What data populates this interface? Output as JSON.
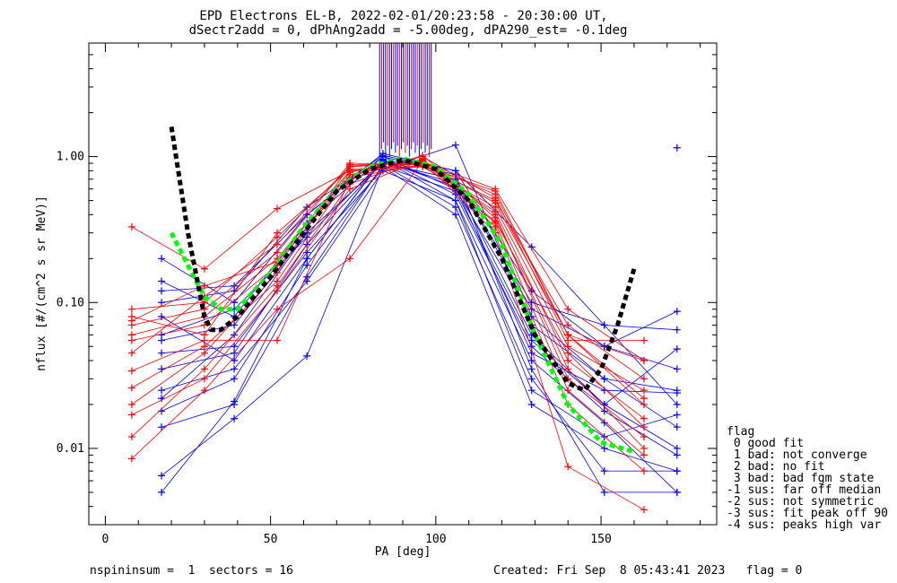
{
  "chart_data": {
    "type": "line",
    "title": "EPD Electrons EL-B, 2022-02-01/20:23:58 - 20:30:00 UT,",
    "subtitle": "dSectr2add = 0, dPhAng2add = -5.00deg, dPA290_est=  -0.1deg",
    "xlabel": "PA [deg]",
    "ylabel": "nflux [#/(cm^2 s sr MeV)]",
    "xlim": [
      -5,
      185
    ],
    "ylim": [
      0.003,
      6.0
    ],
    "yscale": "log",
    "xticks": [
      0,
      50,
      100,
      150
    ],
    "xtick_labels": [
      "0",
      "50",
      "100",
      "150"
    ],
    "yticks": [
      0.01,
      0.1,
      1.0
    ],
    "ytick_labels": [
      "0.01",
      "0.10",
      "1.00"
    ],
    "grid": false,
    "colors": {
      "red": "#ff0000",
      "blue": "#0000ff",
      "black": "#000000",
      "green": "#00ff00"
    },
    "sector_pa_red": [
      8,
      30,
      52,
      74,
      96,
      118,
      140,
      163
    ],
    "sector_pa_blue": [
      17,
      39,
      61,
      84,
      106,
      129,
      151,
      173
    ],
    "red_series": [
      {
        "name": "",
        "values": [
          0.06,
          0.08,
          0.2,
          0.8,
          0.9,
          0.55,
          0.06,
          0.02
        ]
      },
      {
        "name": "",
        "values": [
          0.026,
          0.05,
          0.14,
          0.75,
          0.95,
          0.4,
          0.03,
          0.012
        ]
      },
      {
        "name": "",
        "values": [
          0.09,
          0.1,
          0.28,
          0.85,
          0.92,
          0.6,
          0.09,
          0.04
        ]
      },
      {
        "name": "",
        "values": [
          0.33,
          0.17,
          0.44,
          0.8,
          0.85,
          0.45,
          0.05,
          0.025
        ]
      },
      {
        "name": "",
        "values": [
          0.012,
          0.035,
          0.13,
          0.65,
          0.97,
          0.35,
          0.025,
          0.009
        ]
      },
      {
        "name": "",
        "values": [
          0.07,
          0.09,
          0.22,
          0.9,
          0.88,
          0.5,
          0.07,
          0.03
        ]
      },
      {
        "name": "",
        "values": [
          0.0085,
          0.025,
          0.09,
          0.2,
          0.93,
          0.3,
          0.0075,
          0.0038
        ]
      },
      {
        "name": "",
        "values": [
          0.055,
          0.07,
          0.18,
          0.78,
          1.0,
          0.52,
          0.055,
          0.055
        ]
      },
      {
        "name": "",
        "values": [
          0.02,
          0.045,
          0.16,
          0.88,
          0.9,
          0.42,
          0.04,
          0.016
        ]
      },
      {
        "name": "",
        "values": [
          0.08,
          0.06,
          0.3,
          0.82,
          0.86,
          0.58,
          0.06,
          0.022
        ]
      },
      {
        "name": "",
        "values": [
          0.034,
          0.055,
          0.055,
          0.7,
          1.02,
          0.38,
          0.035,
          0.01
        ]
      },
      {
        "name": "",
        "values": [
          0.017,
          0.03,
          0.12,
          0.6,
          0.95,
          0.33,
          0.02,
          0.007
        ]
      },
      {
        "name": "",
        "values": [
          0.045,
          0.11,
          0.25,
          0.86,
          0.91,
          0.48,
          0.06,
          0.04
        ]
      },
      {
        "name": "",
        "values": [
          0.075,
          0.13,
          0.19,
          0.72,
          0.88,
          0.36,
          0.045,
          0.014
        ]
      }
    ],
    "blue_series": [
      {
        "name": "",
        "values": [
          0.2,
          0.1,
          0.4,
          1.05,
          0.8,
          0.24,
          0.07,
          0.065
        ]
      },
      {
        "name": "",
        "values": [
          0.005,
          0.021,
          0.2,
          0.95,
          0.5,
          0.04,
          0.015,
          0.005
        ]
      },
      {
        "name": "",
        "values": [
          0.055,
          0.07,
          0.3,
          0.9,
          0.7,
          0.09,
          0.05,
          0.087
        ]
      },
      {
        "name": "",
        "values": [
          0.14,
          0.08,
          0.35,
          1.0,
          0.6,
          0.08,
          0.03,
          0.025
        ]
      },
      {
        "name": "",
        "values": [
          0.0065,
          0.016,
          0.043,
          0.85,
          0.4,
          0.02,
          0.01,
          0.007
        ]
      },
      {
        "name": "",
        "values": [
          0.035,
          0.045,
          0.25,
          0.92,
          0.65,
          0.06,
          0.02,
          0.01
        ]
      },
      {
        "name": "",
        "values": [
          0.1,
          0.12,
          0.45,
          1.02,
          0.8,
          0.12,
          0.05,
          0.035
        ]
      },
      {
        "name": "",
        "values": [
          0.014,
          0.02,
          0.15,
          0.88,
          0.45,
          0.03,
          0.007,
          0.007
        ]
      },
      {
        "name": "",
        "values": [
          0.045,
          0.05,
          0.22,
          0.82,
          1.2,
          0.07,
          0.03,
          0.014
        ]
      },
      {
        "name": "",
        "values": [
          0.08,
          0.04,
          0.2,
          0.96,
          0.55,
          0.05,
          0.018,
          0.009
        ]
      },
      {
        "name": "",
        "values": [
          0.022,
          0.06,
          0.3,
          0.9,
          0.7,
          0.1,
          0.07,
          0.02
        ]
      },
      {
        "name": "",
        "values": [
          0.12,
          0.13,
          0.4,
          1.0,
          0.75,
          0.035,
          0.005,
          0.005
        ]
      },
      {
        "name": "",
        "values": [
          0.025,
          0.035,
          0.14,
          0.8,
          0.5,
          0.025,
          0.012,
          0.017
        ]
      },
      {
        "name": "",
        "values": [
          0.06,
          0.09,
          0.28,
          0.94,
          0.62,
          0.045,
          0.025,
          0.024
        ]
      },
      {
        "name": "",
        "values": [
          0.018,
          0.03,
          0.18,
          0.86,
          0.58,
          0.055,
          0.02,
          0.048
        ]
      }
    ],
    "blue_extra_points": [
      {
        "x": 173,
        "y": 1.15
      }
    ],
    "vertical_lines": {
      "x_from": 83,
      "x_to": 99,
      "y_top": 6.0,
      "y_bottom": 1.0
    },
    "fit_green": {
      "x": [
        20,
        25,
        30,
        35,
        40,
        50,
        60,
        70,
        80,
        90,
        100,
        110,
        120,
        130,
        140,
        150,
        160
      ],
      "y": [
        0.3,
        0.18,
        0.11,
        0.09,
        0.09,
        0.16,
        0.33,
        0.6,
        0.85,
        0.97,
        0.85,
        0.55,
        0.25,
        0.06,
        0.02,
        0.011,
        0.0095
      ]
    },
    "fit_black": {
      "x": [
        20,
        25,
        30,
        32,
        35,
        40,
        50,
        60,
        70,
        80,
        90,
        100,
        110,
        120,
        130,
        140,
        145,
        150,
        155,
        160
      ],
      "y": [
        1.6,
        0.3,
        0.08,
        0.065,
        0.065,
        0.08,
        0.15,
        0.3,
        0.58,
        0.82,
        0.95,
        0.82,
        0.5,
        0.2,
        0.06,
        0.028,
        0.025,
        0.035,
        0.07,
        0.17
      ]
    },
    "legend": {
      "position": "right",
      "title": "flag",
      "entries": [
        " 0 good fit",
        " 1 bad: not converge",
        " 2 bad: no fit",
        " 3 bad: bad fgm state",
        "-1 sus: far off median",
        "-2 sus: not symmetric",
        "-3 sus: fit peak off 90",
        "-4 sus: peaks high var"
      ]
    },
    "footer_left": "nspininsum =  1  sectors = 16",
    "footer_right": "Created: Fri Sep  8 05:43:41 2023   flag = 0"
  }
}
